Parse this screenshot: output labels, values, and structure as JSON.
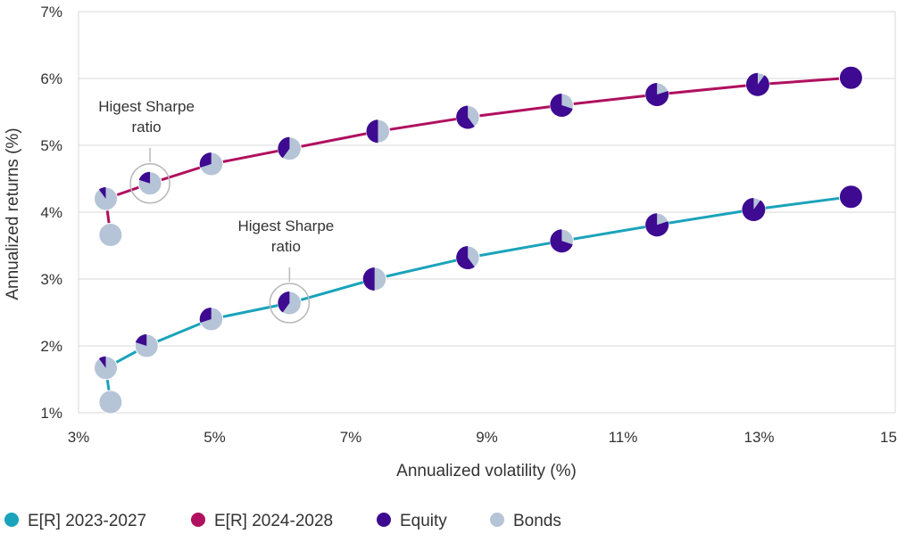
{
  "chart_data": {
    "type": "line",
    "title": "",
    "xlabel": "Annualized volatility (%)",
    "ylabel": "Annualized returns (%)",
    "xlim": [
      3,
      15
    ],
    "ylim": [
      1,
      7
    ],
    "xticks": [
      {
        "value": 3,
        "label": "3%"
      },
      {
        "value": 5,
        "label": "5%"
      },
      {
        "value": 7,
        "label": "7%"
      },
      {
        "value": 9,
        "label": "9%"
      },
      {
        "value": 11,
        "label": "11%"
      },
      {
        "value": 13,
        "label": "13%"
      },
      {
        "value": 15,
        "label": "15%"
      }
    ],
    "yticks": [
      {
        "value": 1,
        "label": "1%"
      },
      {
        "value": 2,
        "label": "2%"
      },
      {
        "value": 3,
        "label": "3%"
      },
      {
        "value": 4,
        "label": "4%"
      },
      {
        "value": 5,
        "label": "5%"
      },
      {
        "value": 6,
        "label": "6%"
      },
      {
        "value": 7,
        "label": "7%"
      }
    ],
    "grid": "horizontal",
    "legend_position": "bottom",
    "series": [
      {
        "name": "E[R] 2023-2027",
        "color": "#1aa3bb",
        "points": [
          {
            "x": 3.47,
            "y": 1.16,
            "equity": 0.0
          },
          {
            "x": 3.4,
            "y": 1.67,
            "equity": 0.1
          },
          {
            "x": 4.0,
            "y": 2.0,
            "equity": 0.2
          },
          {
            "x": 4.95,
            "y": 2.4,
            "equity": 0.3
          },
          {
            "x": 6.1,
            "y": 2.64,
            "equity": 0.4
          },
          {
            "x": 7.35,
            "y": 3.0,
            "equity": 0.5
          },
          {
            "x": 8.72,
            "y": 3.32,
            "equity": 0.6
          },
          {
            "x": 10.1,
            "y": 3.57,
            "equity": 0.7
          },
          {
            "x": 11.5,
            "y": 3.81,
            "equity": 0.8
          },
          {
            "x": 12.92,
            "y": 4.04,
            "equity": 0.9
          },
          {
            "x": 14.35,
            "y": 4.23,
            "equity": 1.0
          }
        ]
      },
      {
        "name": "E[R] 2024-2028",
        "color": "#b0105f",
        "points": [
          {
            "x": 3.47,
            "y": 3.66,
            "equity": 0.0
          },
          {
            "x": 3.4,
            "y": 4.2,
            "equity": 0.1
          },
          {
            "x": 4.05,
            "y": 4.43,
            "equity": 0.2
          },
          {
            "x": 4.95,
            "y": 4.72,
            "equity": 0.3
          },
          {
            "x": 6.1,
            "y": 4.95,
            "equity": 0.4
          },
          {
            "x": 7.4,
            "y": 5.21,
            "equity": 0.5
          },
          {
            "x": 8.72,
            "y": 5.42,
            "equity": 0.6
          },
          {
            "x": 10.1,
            "y": 5.6,
            "equity": 0.7
          },
          {
            "x": 11.5,
            "y": 5.76,
            "equity": 0.8
          },
          {
            "x": 12.98,
            "y": 5.91,
            "equity": 0.9
          },
          {
            "x": 14.35,
            "y": 6.01,
            "equity": 1.0
          }
        ]
      }
    ],
    "annotations": [
      {
        "text_line1": "Higest Sharpe",
        "text_line2": "ratio",
        "x": 4.05,
        "y": 4.43
      },
      {
        "text_line1": "Higest Sharpe",
        "text_line2": "ratio",
        "x": 6.1,
        "y": 2.64
      }
    ],
    "pie_colors": {
      "equity": "#3d0a91",
      "bonds": "#b5c4d6"
    },
    "legend": [
      {
        "label": "E[R] 2023-2027",
        "color": "#1aa3bb"
      },
      {
        "label": "E[R] 2024-2028",
        "color": "#b0105f"
      },
      {
        "label": "Equity",
        "color": "#3d0a91"
      },
      {
        "label": "Bonds",
        "color": "#b5c4d6"
      }
    ]
  }
}
